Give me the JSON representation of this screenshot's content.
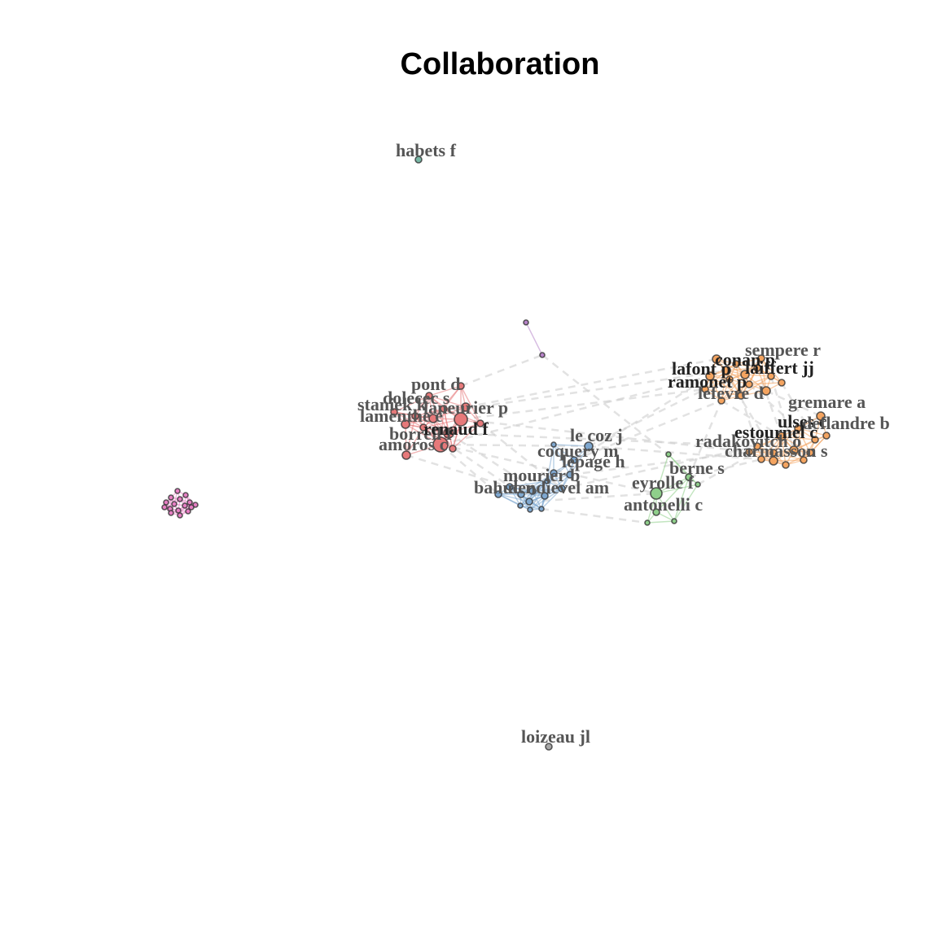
{
  "title": "Collaboration",
  "colors": {
    "red": "#e6797a",
    "orange": "#f4a460",
    "blue": "#7ea7cf",
    "green": "#8fcf8b",
    "purple": "#b783c9",
    "pink": "#e77fc4",
    "gray": "#a8a8a8",
    "teal": "#79b8a6",
    "label": "#555555",
    "label_dark": "#222222"
  },
  "labels": [
    {
      "text": "habets f",
      "color": "gray"
    },
    {
      "text": "loizeau jl",
      "color": "gray"
    },
    {
      "text": "sempere r",
      "color": "gray"
    },
    {
      "text": "conan p",
      "color": "dark"
    },
    {
      "text": "laiffert jj",
      "color": "dark"
    },
    {
      "text": "lafont p",
      "color": "dark"
    },
    {
      "text": "ramonet p",
      "color": "dark"
    },
    {
      "text": "lefevre d",
      "color": "gray"
    },
    {
      "text": "radakovitch o",
      "color": "gray"
    },
    {
      "text": "gremare a",
      "color": "gray"
    },
    {
      "text": "ulses c",
      "color": "dark"
    },
    {
      "text": "deflandre b",
      "color": "gray"
    },
    {
      "text": "estournel c",
      "color": "dark"
    },
    {
      "text": "charmasson s",
      "color": "gray"
    },
    {
      "text": "pont d",
      "color": "gray"
    },
    {
      "text": "dolecec s",
      "color": "gray"
    },
    {
      "text": "staniek k",
      "color": "gray"
    },
    {
      "text": "laneurier p",
      "color": "gray"
    },
    {
      "text": "lamenthe e",
      "color": "gray"
    },
    {
      "text": "borrell f",
      "color": "gray"
    },
    {
      "text": "renaud f",
      "color": "dark"
    },
    {
      "text": "amoros c",
      "color": "gray"
    },
    {
      "text": "le coz j",
      "color": "gray"
    },
    {
      "text": "coquery m",
      "color": "gray"
    },
    {
      "text": "lepage h",
      "color": "gray"
    },
    {
      "text": "mourier b",
      "color": "gray"
    },
    {
      "text": "dendievel am",
      "color": "gray"
    },
    {
      "text": "bahuc r",
      "color": "gray"
    },
    {
      "text": "berne s",
      "color": "gray"
    },
    {
      "text": "eyrolle f",
      "color": "gray"
    },
    {
      "text": "antonelli c",
      "color": "gray"
    }
  ]
}
